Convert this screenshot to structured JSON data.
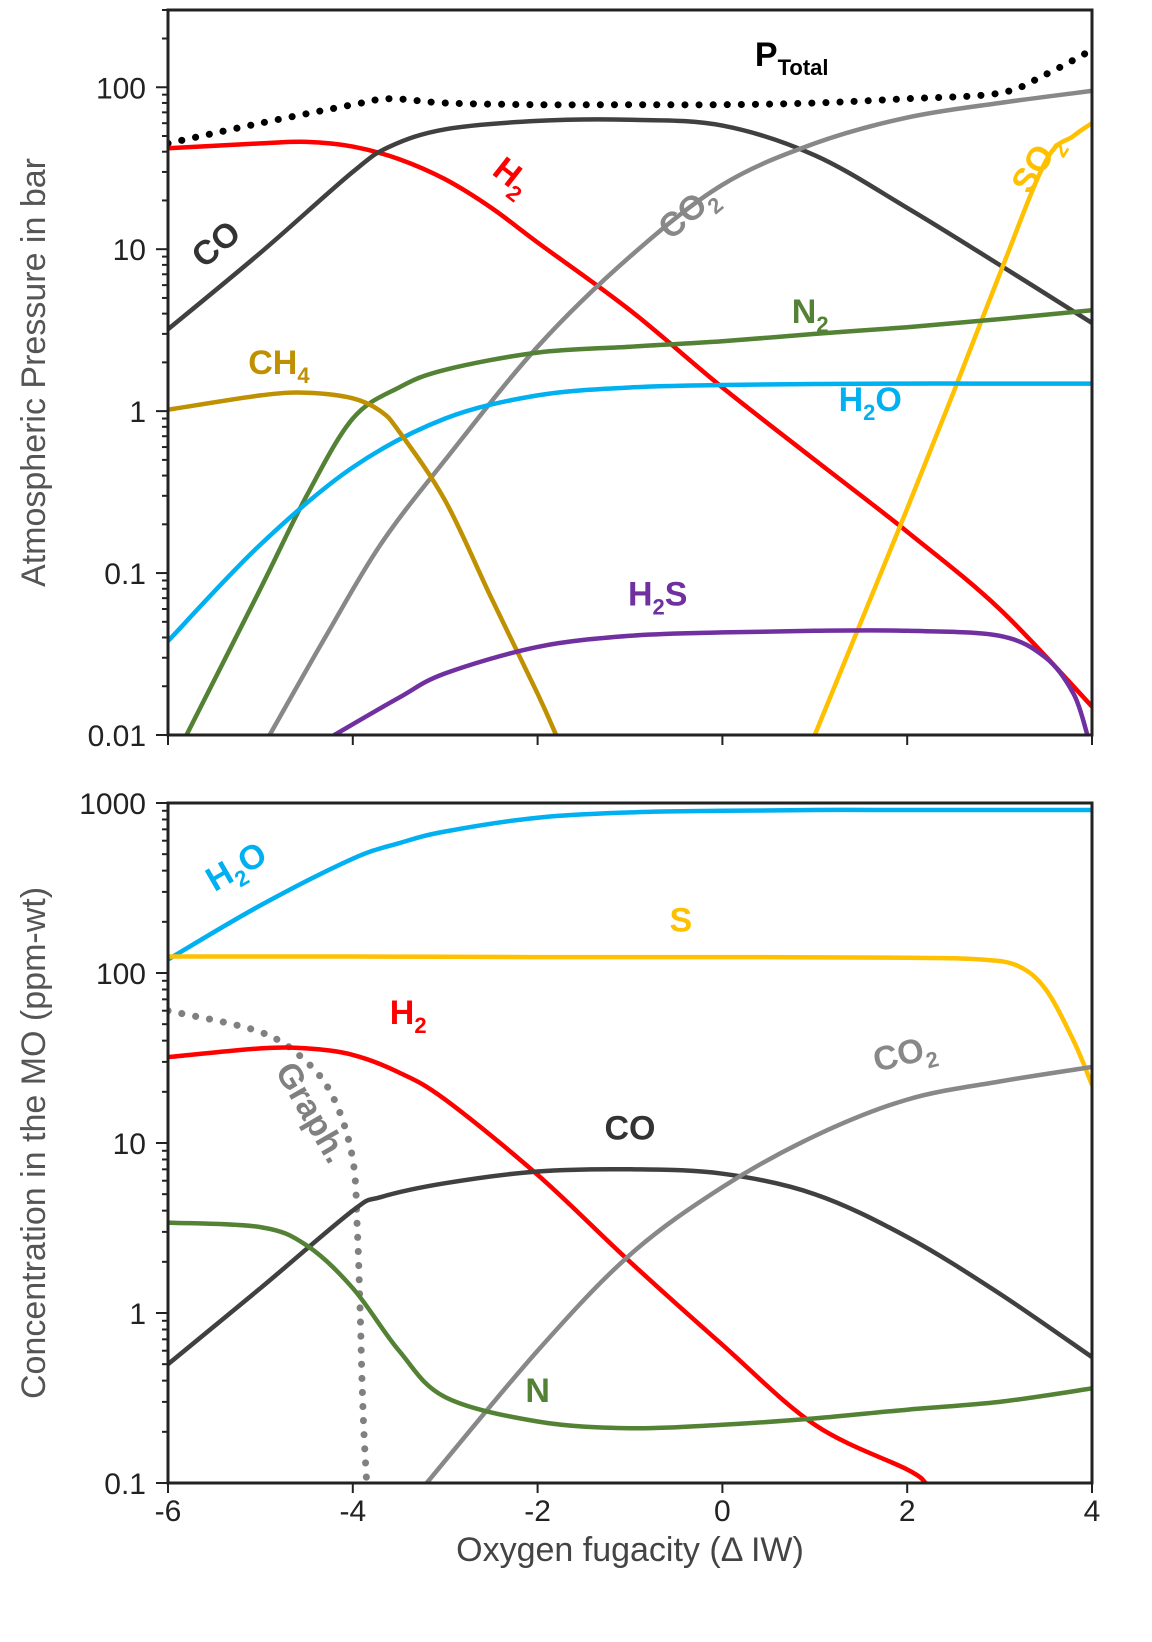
{
  "chart_data": [
    {
      "type": "line",
      "ylabel": "Atmospheric Pressure in bar",
      "xlabel": "",
      "xlim": [
        -6,
        4
      ],
      "ylim": [
        0.01,
        300
      ],
      "yscale": "log",
      "yticks": [
        "0.01",
        "0.1",
        "1",
        "10",
        "100"
      ],
      "grid": false,
      "series": [
        {
          "name": "P",
          "name_sub": "Total",
          "color": "#000000",
          "style": "dotted",
          "x": [
            -6,
            -5,
            -4,
            -3.6,
            -3,
            -2,
            -1,
            0,
            1,
            2,
            3,
            3.5,
            4
          ],
          "y": [
            45,
            60,
            78,
            85,
            80,
            78,
            78,
            78,
            80,
            85,
            92,
            120,
            170
          ]
        },
        {
          "name": "H",
          "name_sub": "2",
          "color": "#ff0000",
          "style": "solid",
          "x": [
            -6,
            -5,
            -4.5,
            -4,
            -3.5,
            -3,
            -2.5,
            -2,
            -1,
            0,
            1,
            2,
            3,
            4
          ],
          "y": [
            42,
            45,
            46,
            43,
            36,
            27,
            18,
            11,
            4.2,
            1.4,
            0.5,
            0.18,
            0.06,
            0.015
          ]
        },
        {
          "name": "CO",
          "color": "#404040",
          "style": "solid",
          "x": [
            -6,
            -5,
            -4,
            -3.6,
            -3,
            -2,
            -1,
            0,
            1,
            2,
            3,
            4
          ],
          "y": [
            3.2,
            9.5,
            30,
            43,
            55,
            62,
            63,
            58,
            38,
            18,
            8,
            3.5
          ]
        },
        {
          "name": "CO",
          "name_sub": "2",
          "color": "#888888",
          "style": "solid",
          "x": [
            -4.9,
            -4.3,
            -3.7,
            -3,
            -2,
            -1,
            0,
            1,
            2,
            3,
            4
          ],
          "y": [
            0.01,
            0.04,
            0.15,
            0.5,
            2.5,
            9,
            25,
            45,
            65,
            80,
            95
          ]
        },
        {
          "name": "SO",
          "name_sub": "2",
          "color": "#ffc000",
          "style": "solid",
          "x": [
            1,
            1.5,
            2,
            2.5,
            3,
            3.5,
            3.8,
            4
          ],
          "y": [
            0.01,
            0.05,
            0.25,
            1.3,
            7,
            35,
            50,
            60
          ]
        },
        {
          "name": "N",
          "name_sub": "2",
          "color": "#548235",
          "style": "solid",
          "x": [
            -5.8,
            -5,
            -4.5,
            -4,
            -3.5,
            -3,
            -2,
            -1,
            0,
            1,
            2,
            3,
            4
          ],
          "y": [
            0.01,
            0.08,
            0.3,
            0.9,
            1.4,
            1.8,
            2.3,
            2.5,
            2.7,
            3,
            3.3,
            3.7,
            4.2
          ]
        },
        {
          "name": "H",
          "name_sub": "2",
          "name_tail": "O",
          "color": "#00b0f0",
          "style": "solid",
          "x": [
            -6,
            -5,
            -4,
            -3,
            -2,
            -1,
            0,
            1,
            2,
            3,
            4
          ],
          "y": [
            0.038,
            0.15,
            0.45,
            0.9,
            1.25,
            1.4,
            1.45,
            1.47,
            1.48,
            1.48,
            1.48
          ]
        },
        {
          "name": "CH",
          "name_sub": "4",
          "color": "#bf9000",
          "style": "solid",
          "x": [
            -6,
            -5,
            -4.5,
            -4,
            -3.7,
            -3.5,
            -3,
            -2.5,
            -2,
            -1.8
          ],
          "y": [
            1.02,
            1.25,
            1.3,
            1.2,
            1.0,
            0.75,
            0.28,
            0.07,
            0.018,
            0.01
          ]
        },
        {
          "name": "H",
          "name_sub": "2",
          "name_tail": "S",
          "color": "#7030a0",
          "style": "solid",
          "x": [
            -4.2,
            -3.5,
            -3,
            -2,
            -1,
            0,
            1,
            2,
            3,
            3.5,
            3.8,
            3.95
          ],
          "y": [
            0.01,
            0.017,
            0.024,
            0.035,
            0.041,
            0.043,
            0.044,
            0.044,
            0.041,
            0.03,
            0.018,
            0.01
          ]
        }
      ],
      "labels": [
        {
          "text": "P",
          "sub": "Total",
          "color": "#000000",
          "x": 0.75,
          "y": 135,
          "rot": 0
        },
        {
          "text": "H",
          "sub": "2",
          "color": "#ff0000",
          "x": -2.35,
          "y": 25,
          "rot": 38
        },
        {
          "text": "CO",
          "color": "#333333",
          "x": -5.4,
          "y": 9.5,
          "rot": -40
        },
        {
          "text": "CO",
          "sub": "2",
          "color": "#888888",
          "x": -0.3,
          "y": 15,
          "rot": -40
        },
        {
          "text": "SO",
          "sub": "2",
          "color": "#ffc000",
          "x": 3.5,
          "y": 31,
          "rot": -58
        },
        {
          "text": "N",
          "sub": "2",
          "color": "#548235",
          "x": 0.95,
          "y": 3.5,
          "rot": 0
        },
        {
          "text": "H",
          "sub": "2",
          "tail": "O",
          "color": "#00b0f0",
          "x": 1.6,
          "y": 1.0,
          "rot": 0
        },
        {
          "text": "CH",
          "sub": "4",
          "color": "#bf9000",
          "x": -4.8,
          "y": 1.7,
          "rot": 0
        },
        {
          "text": "H",
          "sub": "2",
          "tail": "S",
          "color": "#7030a0",
          "x": -0.7,
          "y": 0.063,
          "rot": 0
        }
      ]
    },
    {
      "type": "line",
      "ylabel": "Concentration in the MO (ppm-wt)",
      "xlabel": "Oxygen fugacity (Δ IW)",
      "xlim": [
        -6,
        4
      ],
      "ylim": [
        0.1,
        1000
      ],
      "yscale": "log",
      "xticks": [
        "-6",
        "-4",
        "-2",
        "0",
        "2",
        "4"
      ],
      "yticks": [
        "0.1",
        "1",
        "10",
        "100",
        "1000"
      ],
      "grid": false,
      "series": [
        {
          "name": "H",
          "name_sub": "2",
          "name_tail": "O",
          "color": "#00b0f0",
          "style": "solid",
          "x": [
            -6,
            -5,
            -4,
            -3.5,
            -3,
            -2,
            -1,
            0,
            1,
            2,
            3,
            4
          ],
          "y": [
            120,
            250,
            470,
            580,
            680,
            820,
            880,
            900,
            910,
            910,
            910,
            910
          ]
        },
        {
          "name": "S",
          "color": "#ffc000",
          "style": "solid",
          "x": [
            -6,
            -4,
            -2,
            0,
            2,
            2.8,
            3.2,
            3.5,
            3.8,
            4
          ],
          "y": [
            125,
            125,
            124,
            124,
            123,
            120,
            110,
            80,
            40,
            22
          ]
        },
        {
          "name": "Graph.",
          "color": "#808080",
          "style": "dotted",
          "x": [
            -6,
            -5,
            -4.5,
            -4.2,
            -4,
            -3.95,
            -3.92,
            -3.9,
            -3.88,
            -3.85
          ],
          "y": [
            60,
            45,
            30,
            18,
            8,
            3,
            1,
            0.4,
            0.2,
            0.1
          ]
        },
        {
          "name": "H",
          "name_sub": "2",
          "color": "#ff0000",
          "style": "solid",
          "x": [
            -6,
            -5,
            -4.5,
            -4,
            -3.5,
            -3,
            -2,
            -1,
            0,
            1,
            2,
            2.2
          ],
          "y": [
            32,
            36,
            36,
            33,
            26,
            18,
            6.5,
            2,
            0.65,
            0.22,
            0.12,
            0.1
          ]
        },
        {
          "name": "CO",
          "color": "#404040",
          "style": "solid",
          "x": [
            -6,
            -5,
            -4,
            -3.7,
            -3,
            -2,
            -1,
            0,
            1,
            2,
            3,
            4
          ],
          "y": [
            0.5,
            1.4,
            4,
            4.8,
            5.8,
            6.8,
            7,
            6.6,
            5,
            2.8,
            1.3,
            0.55
          ]
        },
        {
          "name": "CO",
          "name_sub": "2",
          "color": "#888888",
          "style": "solid",
          "x": [
            -3.2,
            -2,
            -1,
            0,
            1,
            2,
            3,
            4
          ],
          "y": [
            0.1,
            0.6,
            2.2,
            5.5,
            11,
            18,
            23,
            28
          ]
        },
        {
          "name": "N",
          "color": "#548235",
          "style": "solid",
          "x": [
            -6,
            -5,
            -4.5,
            -4,
            -3.5,
            -3,
            -2,
            -1,
            0,
            1,
            2,
            3,
            4
          ],
          "y": [
            3.4,
            3.2,
            2.5,
            1.4,
            0.6,
            0.32,
            0.23,
            0.21,
            0.22,
            0.24,
            0.27,
            0.3,
            0.36
          ]
        }
      ],
      "labels": [
        {
          "text": "H",
          "sub": "2",
          "tail": "O",
          "color": "#00b0f0",
          "x": -5.2,
          "y": 370,
          "rot": -30
        },
        {
          "text": "S",
          "color": "#ffc000",
          "x": -0.45,
          "y": 175,
          "rot": 0
        },
        {
          "text": "H",
          "sub": "2",
          "color": "#ff0000",
          "x": -3.4,
          "y": 50,
          "rot": 0
        },
        {
          "text": "Graph.",
          "color": "#808080",
          "x": -4.55,
          "y": 14,
          "rot": 60,
          "normal": true
        },
        {
          "text": "CO",
          "color": "#333333",
          "x": -1.0,
          "y": 10.5,
          "rot": 0
        },
        {
          "text": "CO",
          "sub": "2",
          "color": "#888888",
          "x": 2.0,
          "y": 29,
          "rot": -14
        },
        {
          "text": "N",
          "color": "#548235",
          "x": -2.0,
          "y": 0.3,
          "rot": 0
        }
      ]
    }
  ]
}
